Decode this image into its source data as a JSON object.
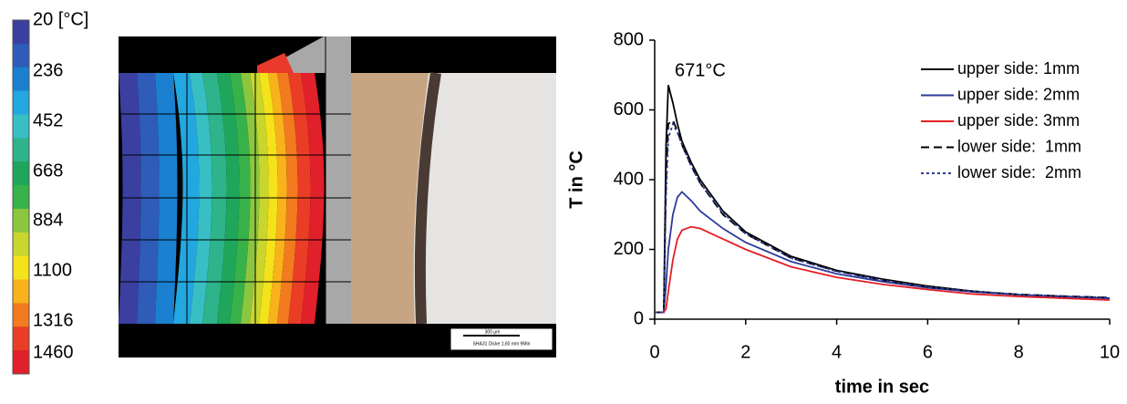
{
  "colorbar": {
    "labels": [
      "20 [°C]",
      "236",
      "452",
      "668",
      "884",
      "1100",
      "1316",
      "1460"
    ],
    "colors": [
      "#3a3fa0",
      "#2e5cb8",
      "#1a80cf",
      "#23a7e0",
      "#38bfc4",
      "#2eb38a",
      "#1fa65a",
      "#37b24a",
      "#8cc63f",
      "#c8d62e",
      "#f4e21a",
      "#f8b21b",
      "#f27a1f",
      "#ea3d25",
      "#e0202a"
    ]
  },
  "micrograph": {
    "scale_bar": "300 µm",
    "caption": "SHA31 Dicke 1,60 mm 9Min"
  },
  "chart_data": {
    "type": "line",
    "y_label": "T in °C",
    "x_label": "time in sec",
    "annotation": "671°C",
    "x": [
      0,
      0.2,
      0.25,
      0.3,
      0.4,
      0.5,
      0.6,
      0.8,
      1,
      1.5,
      2,
      3,
      4,
      5,
      6,
      7,
      8,
      9,
      10
    ],
    "series": [
      {
        "name": "upper side: 1mm",
        "color": "#000000",
        "dash": "solid",
        "values": [
          20,
          20,
          500,
          671,
          620,
          560,
          510,
          450,
          400,
          310,
          250,
          180,
          140,
          115,
          95,
          80,
          70,
          65,
          60
        ]
      },
      {
        "name": "upper side: 2mm",
        "color": "#2b3a9a",
        "dash": "solid",
        "values": [
          20,
          20,
          100,
          200,
          300,
          350,
          365,
          340,
          310,
          260,
          220,
          165,
          130,
          108,
          90,
          78,
          70,
          64,
          60
        ]
      },
      {
        "name": "upper side: 3mm",
        "color": "#e41e26",
        "dash": "solid",
        "values": [
          20,
          20,
          30,
          80,
          170,
          230,
          255,
          265,
          260,
          230,
          200,
          150,
          120,
          100,
          85,
          72,
          65,
          60,
          55
        ]
      },
      {
        "name": "lower side:  1mm",
        "color": "#000000",
        "dash": "dashed",
        "values": [
          20,
          20,
          400,
          560,
          570,
          540,
          500,
          440,
          390,
          300,
          245,
          175,
          138,
          112,
          92,
          80,
          71,
          66,
          62
        ]
      },
      {
        "name": "lower side:  2mm",
        "color": "#2b3a9a",
        "dash": "dotted",
        "values": [
          20,
          20,
          350,
          520,
          560,
          535,
          500,
          440,
          390,
          305,
          245,
          175,
          137,
          112,
          92,
          80,
          71,
          66,
          62
        ]
      }
    ],
    "xlim": [
      0,
      10
    ],
    "xticks": [
      0,
      2,
      4,
      6,
      8,
      10
    ],
    "ylim": [
      0,
      800
    ],
    "yticks": [
      0,
      200,
      400,
      600,
      800
    ],
    "legend": "top-right"
  }
}
